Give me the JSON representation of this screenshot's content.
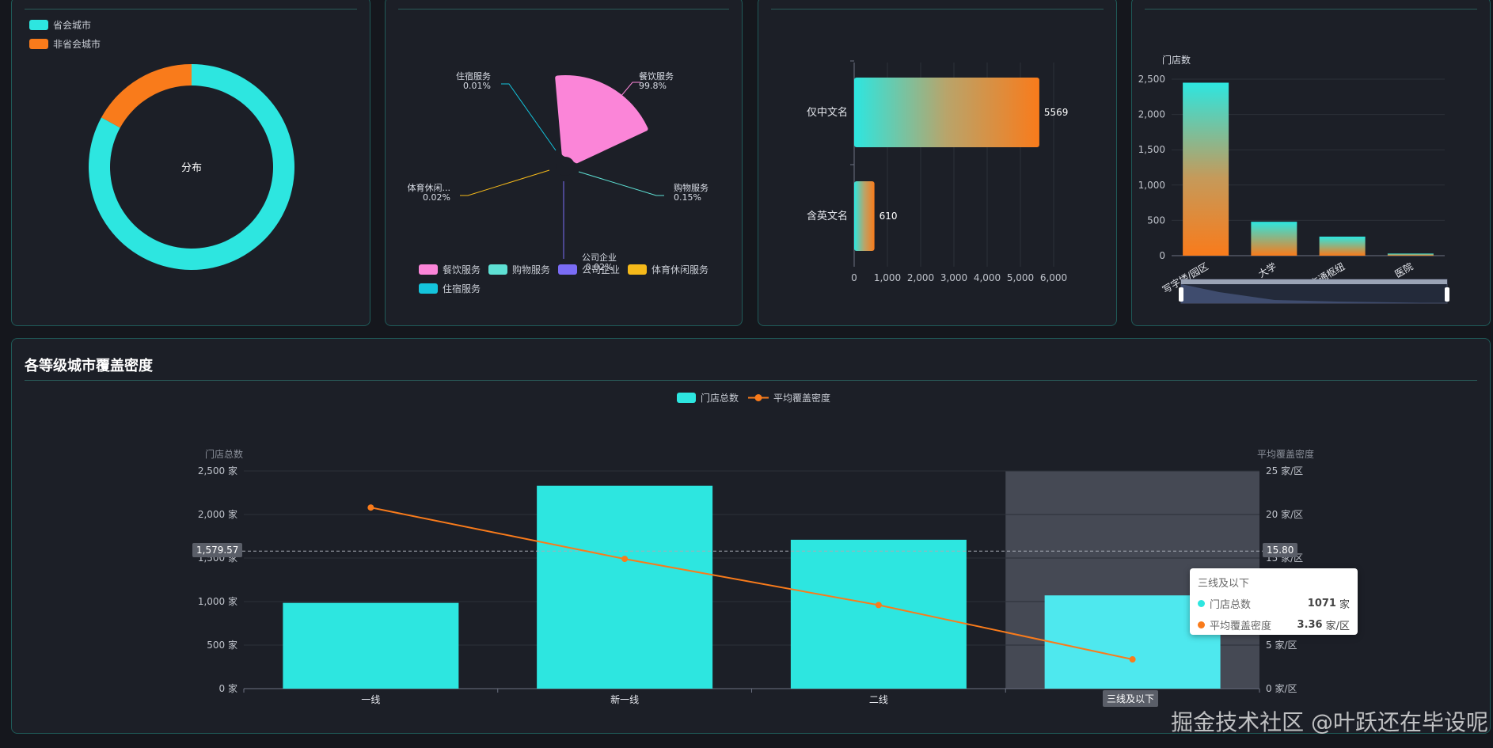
{
  "colors": {
    "cyan": "#2de6e0",
    "orange": "#f97b1b",
    "pink": "#fb85d8",
    "teal": "#5ee0d4",
    "purple": "#7a6cf5",
    "yellow": "#f5b91a",
    "sky": "#14c4dc"
  },
  "panel1": {
    "legend": [
      "省会城市",
      "非省会城市"
    ],
    "center_label": "分布"
  },
  "panel2": {
    "callouts": [
      {
        "name": "住宿服务",
        "pct": "0.01%"
      },
      {
        "name": "餐饮服务",
        "pct": "99.8%"
      },
      {
        "name": "体育休闲...",
        "pct": "0.02%"
      },
      {
        "name": "购物服务",
        "pct": "0.15%"
      },
      {
        "name": "公司企业",
        "pct": "0.02%"
      }
    ],
    "legend": [
      "餐饮服务",
      "购物服务",
      "公司企业",
      "体育休闲服务",
      "住宿服务"
    ]
  },
  "panel3": {},
  "panel4": {
    "ylabel": "门店数"
  },
  "panel5": {
    "title": "各等级城市覆盖密度",
    "legend": [
      "门店总数",
      "平均覆盖密度"
    ],
    "ylabel_left": "门店总数",
    "ylabel_right": "平均覆盖密度",
    "pointer_left": "1,579.57",
    "pointer_right": "15.80",
    "x_highlight": "三线及以下",
    "tooltip": {
      "title": "三线及以下",
      "rows": [
        {
          "name": "门店总数",
          "value": "1071",
          "unit": "家"
        },
        {
          "name": "平均覆盖密度",
          "value": "3.36",
          "unit": "家/区"
        }
      ]
    }
  },
  "watermark": "掘金技术社区 @叶跃还在毕设呢",
  "chart_data": [
    {
      "type": "pie",
      "donut": true,
      "labels": [
        "省会城市",
        "非省会城市"
      ],
      "values": [
        83,
        17
      ],
      "center_text": "分布"
    },
    {
      "type": "pie",
      "rose": true,
      "labels": [
        "餐饮服务",
        "购物服务",
        "公司企业",
        "体育休闲服务",
        "住宿服务"
      ],
      "values": [
        99.8,
        0.15,
        0.02,
        0.02,
        0.01
      ]
    },
    {
      "type": "bar",
      "orientation": "horizontal",
      "categories": [
        "仅中文名",
        "含英文名"
      ],
      "values": [
        5569,
        610
      ],
      "xlim": [
        0,
        6000
      ],
      "ticks": [
        "0",
        "1,000",
        "2,000",
        "3,000",
        "4,000",
        "5,000",
        "6,000"
      ]
    },
    {
      "type": "bar",
      "categories": [
        "写字楼/园区",
        "大学",
        "交通枢纽",
        "医院"
      ],
      "values": [
        2450,
        480,
        270,
        30
      ],
      "ylabel": "门店数",
      "ylim": [
        0,
        2500
      ],
      "ticks": [
        "0",
        "500",
        "1,000",
        "1,500",
        "2,000",
        "2,500"
      ]
    },
    {
      "type": "bar",
      "categories": [
        "一线",
        "新一线",
        "二线",
        "三线及以下"
      ],
      "series": [
        {
          "name": "门店总数",
          "type": "bar",
          "values": [
            985,
            2330,
            1710,
            1071
          ]
        },
        {
          "name": "平均覆盖密度",
          "type": "line",
          "values": [
            20.8,
            14.9,
            9.6,
            3.36
          ]
        }
      ],
      "ylabel": "门店总数",
      "y2label": "平均覆盖密度",
      "ylim": [
        0,
        2500
      ],
      "y2lim": [
        0,
        25
      ],
      "left_ticks": [
        "0 家",
        "500 家",
        "1,000 家",
        "1,500 家",
        "2,000 家",
        "2,500 家"
      ],
      "right_ticks": [
        "0 家/区",
        "5 家/区",
        "10 家/区",
        "15 家/区",
        "20 家/区",
        "25 家/区"
      ]
    }
  ]
}
